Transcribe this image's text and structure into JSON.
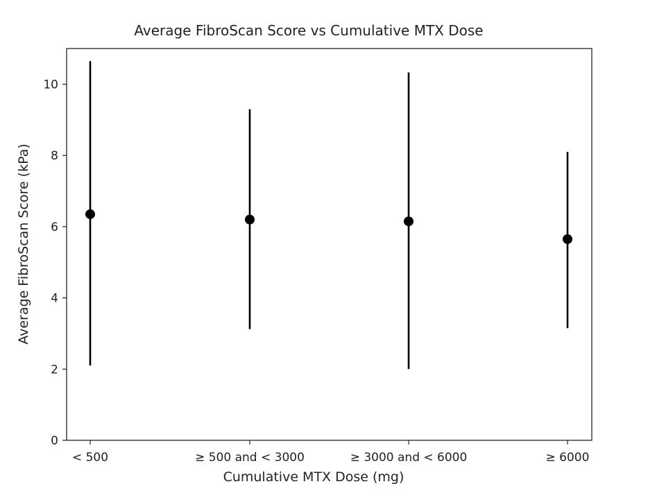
{
  "chart_data": {
    "type": "scatter",
    "title": "Average FibroScan Score vs Cumulative MTX Dose",
    "xlabel": "Cumulative MTX Dose (mg)",
    "ylabel": "Average FibroScan Score (kPa)",
    "categories": [
      "< 500",
      "≥ 500 and < 3000",
      "≥ 3000 and < 6000",
      "≥ 6000"
    ],
    "means": [
      6.35,
      6.2,
      6.15,
      5.65
    ],
    "lower": [
      2.1,
      3.12,
      2.0,
      3.15
    ],
    "upper": [
      10.65,
      9.3,
      10.33,
      8.1
    ],
    "ylim": [
      0,
      11
    ],
    "yticks": [
      0,
      2,
      4,
      6,
      8,
      10
    ],
    "grid": false,
    "legend": "none",
    "colors": {
      "marker": "#000000",
      "errorbar": "#000000",
      "axis": "#222222"
    }
  }
}
